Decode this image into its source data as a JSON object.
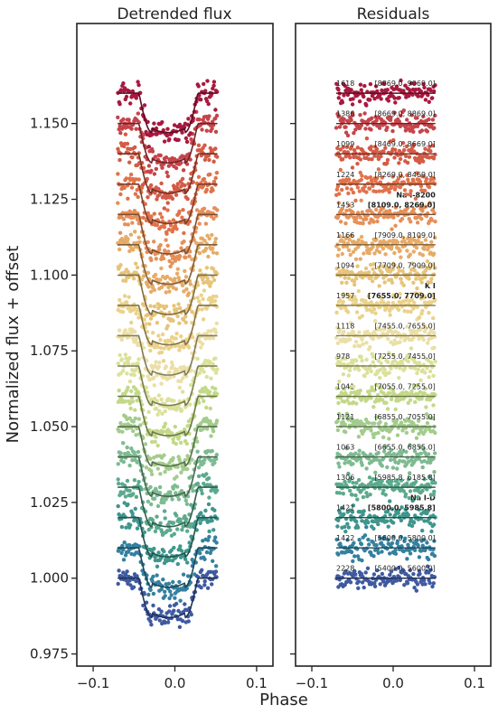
{
  "chart_data": {
    "type": "scatter",
    "panels": [
      {
        "title": "Detrended flux",
        "xlim": [
          -0.12,
          0.12
        ],
        "ylim": [
          0.971,
          1.183
        ]
      },
      {
        "title": "Residuals",
        "xlim": [
          -0.12,
          0.12
        ],
        "ylim": [
          0.971,
          1.183
        ]
      }
    ],
    "xlabel": "Phase",
    "ylabel": "Normalized flux + offset",
    "x_ticks": [
      "−0.1",
      "0.0",
      "0.1"
    ],
    "x_tick_values": [
      -0.1,
      0.0,
      0.1
    ],
    "y_ticks": [
      "0.975",
      "1.000",
      "1.025",
      "1.050",
      "1.075",
      "1.100",
      "1.125",
      "1.150"
    ],
    "y_tick_values": [
      0.975,
      1.0,
      1.025,
      1.05,
      1.075,
      1.1,
      1.125,
      1.15
    ],
    "phase_range": [
      -0.07,
      0.052
    ],
    "transit": {
      "mid": -0.008,
      "ingress_start": -0.044,
      "ingress_end": -0.028,
      "egress_start": 0.012,
      "egress_end": 0.028
    },
    "series": [
      {
        "count": "2228",
        "range": "[5400.0, 5600.0]",
        "offset": 1.0,
        "depth": 0.013,
        "color": "#3f5aa0"
      },
      {
        "count": "1422",
        "range": "[5600.0, 5800.0]",
        "offset": 1.01,
        "depth": 0.013,
        "color": "#34819f"
      },
      {
        "count": "1421",
        "range": "[5800.0, 5985.8]",
        "offset": 1.02,
        "depth": 0.013,
        "color": "#3f968c",
        "feature": "Na I-D",
        "bold": true
      },
      {
        "count": "1306",
        "range": "[5985.8, 6185.8]",
        "offset": 1.03,
        "depth": 0.013,
        "color": "#5caa8e"
      },
      {
        "count": "1063",
        "range": "[6655.0, 6855.0]",
        "offset": 1.04,
        "depth": 0.013,
        "color": "#7ebb91"
      },
      {
        "count": "1121",
        "range": "[6855.0, 7055.0]",
        "offset": 1.05,
        "depth": 0.013,
        "color": "#a2cc8c"
      },
      {
        "count": "1041",
        "range": "[7055.0, 7255.0]",
        "offset": 1.06,
        "depth": 0.013,
        "color": "#c3d988"
      },
      {
        "count": "978",
        "range": "[7255.0, 7455.0]",
        "offset": 1.07,
        "depth": 0.013,
        "color": "#dbe19a"
      },
      {
        "count": "1118",
        "range": "[7455.0, 7655.0]",
        "offset": 1.08,
        "depth": 0.013,
        "color": "#ebdfa5"
      },
      {
        "count": "1957",
        "range": "[7655.0, 7709.0]",
        "offset": 1.09,
        "depth": 0.013,
        "color": "#ebd28a",
        "feature": "K I",
        "bold": true
      },
      {
        "count": "1094",
        "range": "[7709.0, 7909.0]",
        "offset": 1.1,
        "depth": 0.013,
        "color": "#e6c479"
      },
      {
        "count": "1166",
        "range": "[7909.0, 8109.0]",
        "offset": 1.11,
        "depth": 0.013,
        "color": "#e6ab66"
      },
      {
        "count": "1453",
        "range": "[8109.0, 8269.0]",
        "offset": 1.12,
        "depth": 0.013,
        "color": "#e5905a",
        "feature": "Na I-8200",
        "bold": true
      },
      {
        "count": "1224",
        "range": "[8269.0, 8469.0]",
        "offset": 1.13,
        "depth": 0.013,
        "color": "#e0724a"
      },
      {
        "count": "1099",
        "range": "[8469.0, 8669.0]",
        "offset": 1.14,
        "depth": 0.013,
        "color": "#d45b46"
      },
      {
        "count": "1386",
        "range": "[8669.0, 8869.0]",
        "offset": 1.15,
        "depth": 0.013,
        "color": "#c5444a"
      },
      {
        "count": "1618",
        "range": "[8869.0, 9069.0]",
        "offset": 1.16,
        "depth": 0.013,
        "color": "#a8193f"
      }
    ]
  }
}
